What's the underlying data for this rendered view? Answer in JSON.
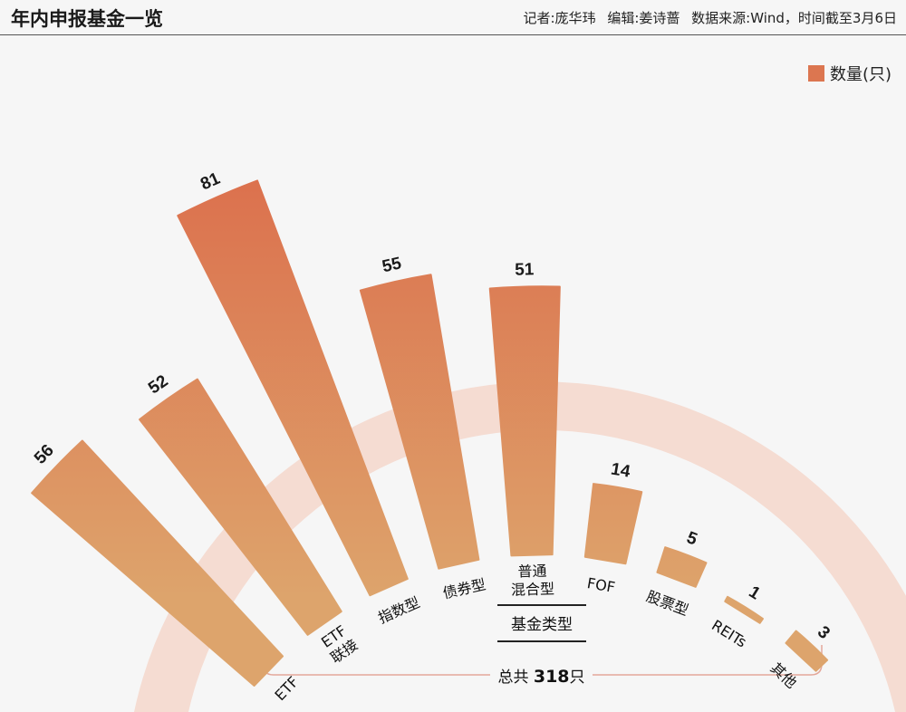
{
  "header": {
    "title": "年内申报基金一览",
    "credits": [
      "记者:庞华玮",
      "编辑:姜诗蔷",
      "数据来源:Wind，时间截至3月6日"
    ]
  },
  "legend": {
    "label": "数量(只)",
    "color": "#dc7650"
  },
  "axis_title": "基金类型",
  "total": {
    "prefix": "总共 ",
    "value": "318",
    "suffix": "只"
  },
  "chart_data": {
    "type": "bar",
    "layout": "radial-fan",
    "categories": [
      "ETF",
      "ETF联接",
      "指数型",
      "债券型",
      "普通混合型",
      "FOF",
      "股票型",
      "REITs",
      "其他"
    ],
    "category_lines": [
      [
        "ETF"
      ],
      [
        "ETF",
        "联接"
      ],
      [
        "指数型"
      ],
      [
        "债券型"
      ],
      [
        "普通",
        "混合型"
      ],
      [
        "FOF"
      ],
      [
        "股票型"
      ],
      [
        "REITs"
      ],
      [
        "其他"
      ]
    ],
    "values": [
      56,
      52,
      81,
      55,
      51,
      14,
      5,
      1,
      3
    ],
    "series": [
      {
        "name": "数量(只)",
        "values": [
          56,
          52,
          81,
          55,
          51,
          14,
          5,
          1,
          3
        ]
      }
    ],
    "colors": {
      "bar_top": "#dc6446",
      "bar_bottom": "#dda46c",
      "ring": "#f5dcd2"
    }
  }
}
